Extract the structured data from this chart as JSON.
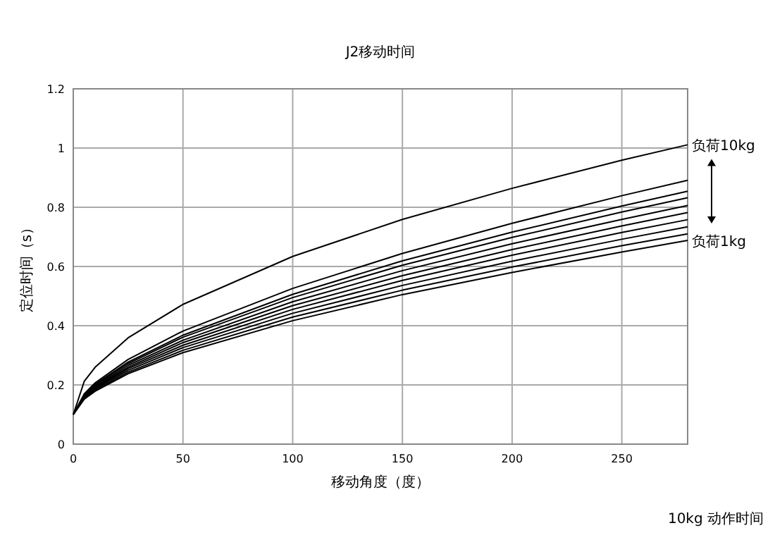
{
  "chart_data": {
    "type": "line",
    "title": "J2移动时间",
    "xlabel": "移动角度（度）",
    "ylabel": "定位时间（s）",
    "x": [
      0,
      5,
      10,
      25,
      50,
      100,
      150,
      200,
      250,
      280
    ],
    "series": [
      {
        "name": "负荷10kg",
        "color": "#000000",
        "values": [
          0.1,
          0.212,
          0.26,
          0.359,
          0.472,
          0.634,
          0.759,
          0.864,
          0.959,
          1.011
        ]
      },
      {
        "color": "#000000",
        "values": [
          0.1,
          0.17,
          0.207,
          0.286,
          0.382,
          0.526,
          0.644,
          0.746,
          0.839,
          0.891
        ]
      },
      {
        "color": "#000000",
        "values": [
          0.1,
          0.167,
          0.202,
          0.277,
          0.368,
          0.506,
          0.619,
          0.716,
          0.804,
          0.854
        ]
      },
      {
        "color": "#000000",
        "values": [
          0.1,
          0.165,
          0.199,
          0.272,
          0.361,
          0.495,
          0.604,
          0.698,
          0.784,
          0.832
        ]
      },
      {
        "color": "#000000",
        "values": [
          0.1,
          0.163,
          0.195,
          0.266,
          0.351,
          0.481,
          0.586,
          0.677,
          0.759,
          0.806
        ]
      },
      {
        "color": "#000000",
        "values": [
          0.1,
          0.161,
          0.192,
          0.26,
          0.343,
          0.468,
          0.569,
          0.657,
          0.737,
          0.782
        ]
      },
      {
        "color": "#000000",
        "values": [
          0.1,
          0.159,
          0.189,
          0.255,
          0.334,
          0.455,
          0.553,
          0.638,
          0.715,
          0.758
        ]
      },
      {
        "color": "#000000",
        "values": [
          0.1,
          0.156,
          0.186,
          0.249,
          0.326,
          0.442,
          0.536,
          0.618,
          0.692,
          0.734
        ]
      },
      {
        "color": "#000000",
        "values": [
          0.1,
          0.154,
          0.182,
          0.243,
          0.317,
          0.429,
          0.52,
          0.598,
          0.67,
          0.71
        ]
      },
      {
        "name": "负荷1kg",
        "color": "#000000",
        "values": [
          0.1,
          0.152,
          0.179,
          0.238,
          0.309,
          0.417,
          0.505,
          0.58,
          0.649,
          0.688
        ]
      }
    ],
    "xlim": [
      0,
      280
    ],
    "xticks": [
      0,
      50,
      100,
      150,
      200,
      250
    ],
    "ylim": [
      0,
      1.2
    ],
    "yticks": [
      0,
      0.2,
      0.4,
      0.6,
      0.8,
      1,
      1.2
    ],
    "grid": true,
    "legend": "right",
    "marker": "none",
    "line_style": "solid",
    "annotations": [
      "10kg 动作时间"
    ]
  }
}
